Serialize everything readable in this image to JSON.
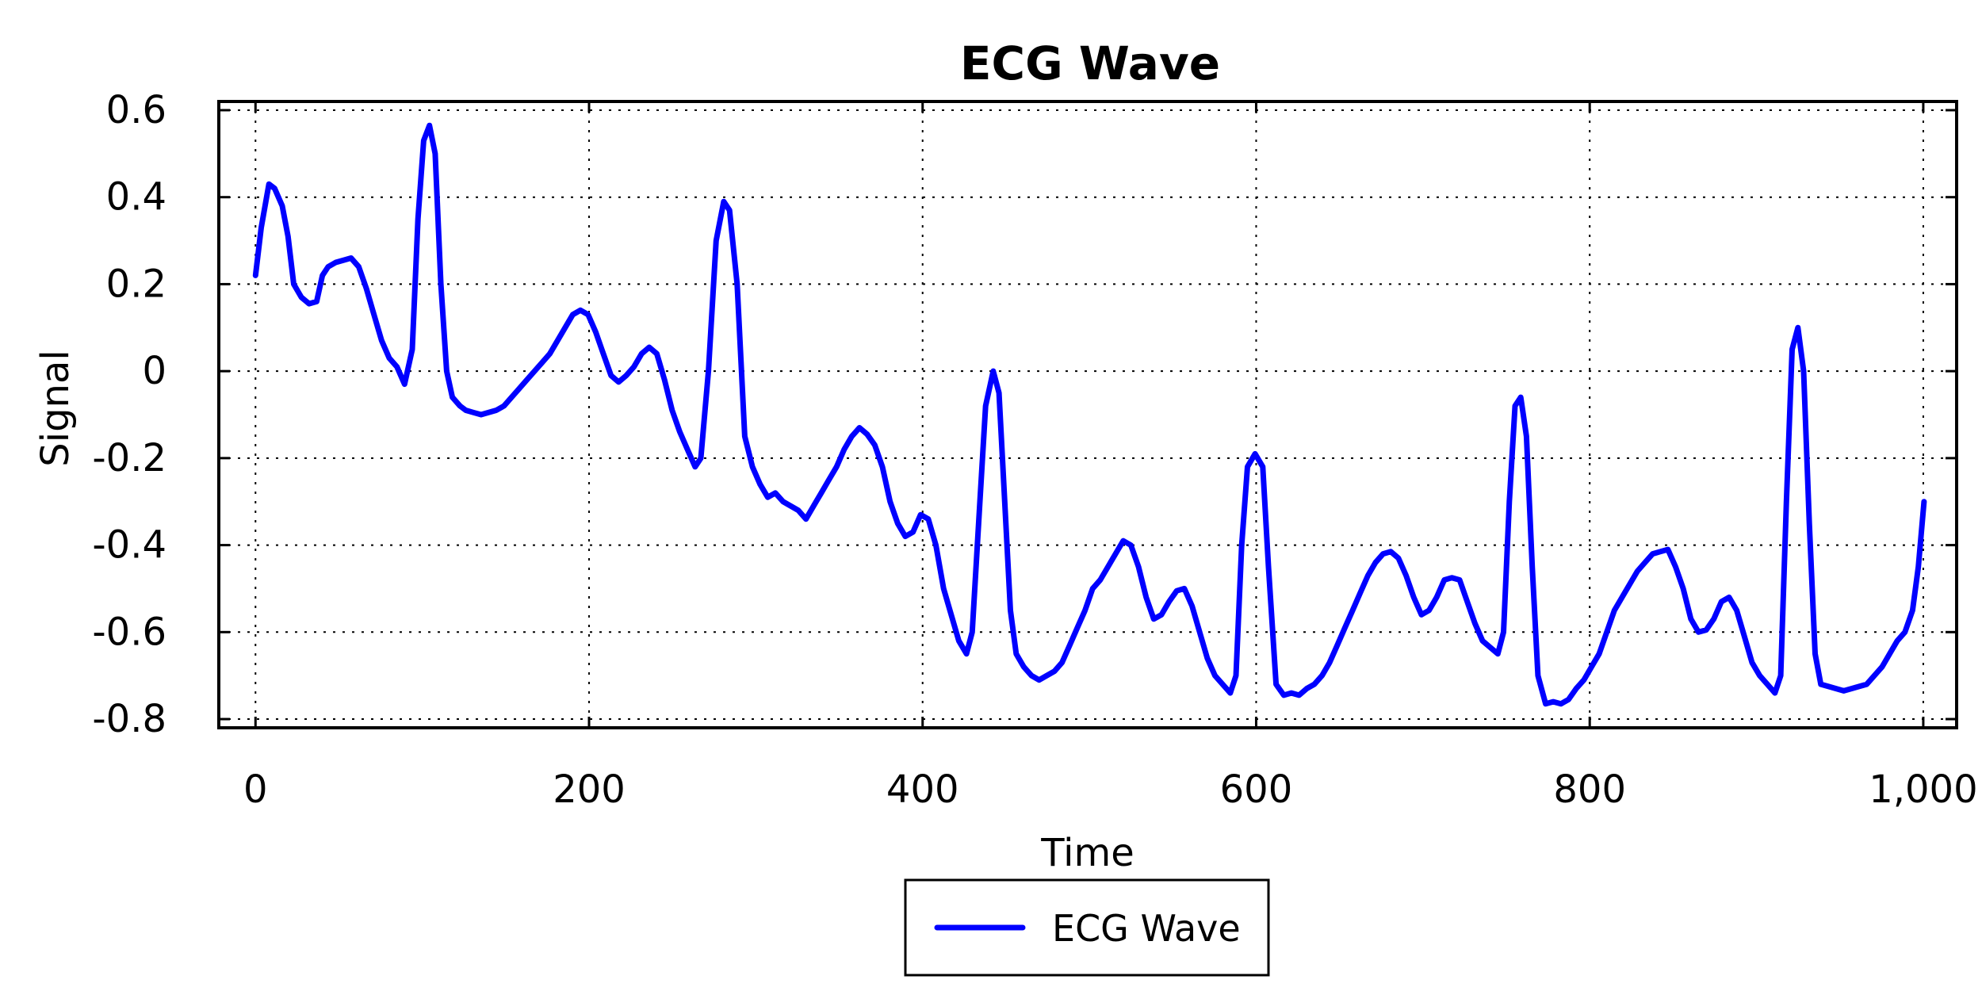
{
  "chart_data": {
    "type": "line",
    "title": "ECG Wave",
    "xlabel": "Time",
    "ylabel": "Signal",
    "xlim": [
      -22,
      1020
    ],
    "ylim": [
      -0.82,
      0.62
    ],
    "x_ticks": [
      0,
      200,
      400,
      600,
      800,
      1000
    ],
    "x_tick_labels": [
      "0",
      "200",
      "400",
      "600",
      "800",
      "1,000"
    ],
    "y_ticks": [
      0.6,
      0.4,
      0.2,
      0,
      -0.2,
      -0.4,
      -0.6,
      -0.8
    ],
    "y_tick_labels": [
      "0.6",
      "0.4",
      "0.2",
      "0",
      "-0.2",
      "-0.4",
      "-0.6",
      "-0.8"
    ],
    "grid": true,
    "grid_style": "dotted",
    "legend_position": "bottom-center",
    "series": [
      {
        "name": "ECG Wave",
        "color": "#0000ff",
        "points": [
          [
            0,
            0.22
          ],
          [
            3,
            0.33
          ],
          [
            7,
            0.43
          ],
          [
            10,
            0.42
          ],
          [
            14,
            0.38
          ],
          [
            17,
            0.31
          ],
          [
            20,
            0.2
          ],
          [
            24,
            0.17
          ],
          [
            28,
            0.155
          ],
          [
            32,
            0.16
          ],
          [
            35,
            0.22
          ],
          [
            38,
            0.24
          ],
          [
            42,
            0.25
          ],
          [
            46,
            0.255
          ],
          [
            50,
            0.26
          ],
          [
            54,
            0.24
          ],
          [
            58,
            0.19
          ],
          [
            62,
            0.13
          ],
          [
            66,
            0.07
          ],
          [
            70,
            0.03
          ],
          [
            74,
            0.01
          ],
          [
            78,
            -0.03
          ],
          [
            82,
            0.05
          ],
          [
            85,
            0.35
          ],
          [
            88,
            0.53
          ],
          [
            91,
            0.565
          ],
          [
            94,
            0.5
          ],
          [
            97,
            0.2
          ],
          [
            100,
            0.0
          ],
          [
            103,
            -0.06
          ],
          [
            107,
            -0.08
          ],
          [
            110,
            -0.09
          ],
          [
            114,
            -0.095
          ],
          [
            118,
            -0.1
          ],
          [
            122,
            -0.095
          ],
          [
            126,
            -0.09
          ],
          [
            130,
            -0.08
          ],
          [
            134,
            -0.06
          ],
          [
            138,
            -0.04
          ],
          [
            142,
            -0.02
          ],
          [
            146,
            0.0
          ],
          [
            150,
            0.02
          ],
          [
            154,
            0.04
          ],
          [
            158,
            0.07
          ],
          [
            162,
            0.1
          ],
          [
            166,
            0.13
          ],
          [
            170,
            0.14
          ],
          [
            174,
            0.13
          ],
          [
            178,
            0.09
          ],
          [
            182,
            0.04
          ],
          [
            186,
            -0.01
          ],
          [
            190,
            -0.025
          ],
          [
            194,
            -0.01
          ],
          [
            198,
            0.01
          ],
          [
            202,
            0.04
          ],
          [
            206,
            0.055
          ],
          [
            210,
            0.04
          ],
          [
            214,
            -0.02
          ],
          [
            218,
            -0.09
          ],
          [
            222,
            -0.14
          ],
          [
            226,
            -0.18
          ],
          [
            230,
            -0.22
          ],
          [
            233,
            -0.2
          ],
          [
            237,
            0.0
          ],
          [
            241,
            0.3
          ],
          [
            245,
            0.39
          ],
          [
            248,
            0.37
          ],
          [
            252,
            0.2
          ],
          [
            256,
            -0.15
          ],
          [
            260,
            -0.22
          ],
          [
            264,
            -0.26
          ],
          [
            268,
            -0.29
          ],
          [
            272,
            -0.28
          ],
          [
            276,
            -0.3
          ],
          [
            280,
            -0.31
          ],
          [
            284,
            -0.32
          ],
          [
            288,
            -0.34
          ],
          [
            292,
            -0.31
          ],
          [
            296,
            -0.28
          ],
          [
            300,
            -0.25
          ],
          [
            304,
            -0.22
          ],
          [
            308,
            -0.18
          ],
          [
            312,
            -0.15
          ],
          [
            316,
            -0.13
          ],
          [
            320,
            -0.145
          ],
          [
            324,
            -0.17
          ],
          [
            328,
            -0.22
          ],
          [
            332,
            -0.3
          ],
          [
            336,
            -0.35
          ],
          [
            340,
            -0.38
          ],
          [
            344,
            -0.37
          ],
          [
            348,
            -0.33
          ],
          [
            352,
            -0.34
          ],
          [
            356,
            -0.4
          ],
          [
            360,
            -0.5
          ],
          [
            364,
            -0.56
          ],
          [
            368,
            -0.62
          ],
          [
            372,
            -0.65
          ],
          [
            375,
            -0.6
          ],
          [
            379,
            -0.3
          ],
          [
            382,
            -0.08
          ],
          [
            386,
            0.0
          ],
          [
            389,
            -0.05
          ],
          [
            392,
            -0.3
          ],
          [
            395,
            -0.55
          ],
          [
            398,
            -0.65
          ],
          [
            402,
            -0.68
          ],
          [
            406,
            -0.7
          ],
          [
            410,
            -0.71
          ],
          [
            414,
            -0.7
          ],
          [
            418,
            -0.69
          ],
          [
            422,
            -0.67
          ],
          [
            426,
            -0.63
          ],
          [
            430,
            -0.59
          ],
          [
            434,
            -0.55
          ],
          [
            438,
            -0.5
          ],
          [
            442,
            -0.48
          ],
          [
            446,
            -0.45
          ],
          [
            450,
            -0.42
          ],
          [
            454,
            -0.39
          ],
          [
            458,
            -0.4
          ],
          [
            462,
            -0.45
          ],
          [
            466,
            -0.52
          ],
          [
            470,
            -0.57
          ],
          [
            474,
            -0.56
          ],
          [
            478,
            -0.53
          ],
          [
            482,
            -0.505
          ],
          [
            486,
            -0.5
          ],
          [
            490,
            -0.54
          ],
          [
            494,
            -0.6
          ],
          [
            498,
            -0.66
          ],
          [
            502,
            -0.7
          ],
          [
            506,
            -0.72
          ],
          [
            510,
            -0.74
          ],
          [
            513,
            -0.7
          ],
          [
            516,
            -0.4
          ],
          [
            519,
            -0.22
          ],
          [
            523,
            -0.19
          ],
          [
            527,
            -0.22
          ],
          [
            530,
            -0.45
          ],
          [
            534,
            -0.72
          ],
          [
            538,
            -0.745
          ],
          [
            542,
            -0.74
          ],
          [
            546,
            -0.745
          ],
          [
            550,
            -0.73
          ],
          [
            554,
            -0.72
          ],
          [
            558,
            -0.7
          ],
          [
            562,
            -0.67
          ],
          [
            566,
            -0.63
          ],
          [
            570,
            -0.59
          ],
          [
            574,
            -0.55
          ],
          [
            578,
            -0.51
          ],
          [
            582,
            -0.47
          ],
          [
            586,
            -0.44
          ],
          [
            590,
            -0.42
          ],
          [
            594,
            -0.415
          ],
          [
            598,
            -0.43
          ],
          [
            602,
            -0.47
          ],
          [
            606,
            -0.52
          ],
          [
            610,
            -0.56
          ],
          [
            614,
            -0.55
          ],
          [
            618,
            -0.52
          ],
          [
            622,
            -0.48
          ],
          [
            626,
            -0.475
          ],
          [
            630,
            -0.48
          ],
          [
            634,
            -0.53
          ],
          [
            638,
            -0.58
          ],
          [
            642,
            -0.62
          ],
          [
            646,
            -0.635
          ],
          [
            650,
            -0.65
          ],
          [
            653,
            -0.6
          ],
          [
            656,
            -0.3
          ],
          [
            659,
            -0.08
          ],
          [
            662,
            -0.06
          ],
          [
            665,
            -0.15
          ],
          [
            668,
            -0.45
          ],
          [
            671,
            -0.7
          ],
          [
            675,
            -0.765
          ],
          [
            679,
            -0.76
          ],
          [
            683,
            -0.765
          ],
          [
            687,
            -0.755
          ],
          [
            691,
            -0.73
          ],
          [
            695,
            -0.71
          ],
          [
            699,
            -0.68
          ],
          [
            703,
            -0.65
          ],
          [
            707,
            -0.6
          ],
          [
            711,
            -0.55
          ],
          [
            715,
            -0.52
          ],
          [
            719,
            -0.49
          ],
          [
            723,
            -0.46
          ],
          [
            727,
            -0.44
          ],
          [
            731,
            -0.42
          ],
          [
            735,
            -0.415
          ],
          [
            739,
            -0.41
          ],
          [
            743,
            -0.45
          ],
          [
            747,
            -0.5
          ],
          [
            751,
            -0.57
          ],
          [
            755,
            -0.6
          ],
          [
            759,
            -0.595
          ],
          [
            763,
            -0.57
          ],
          [
            767,
            -0.53
          ],
          [
            771,
            -0.52
          ],
          [
            775,
            -0.55
          ],
          [
            779,
            -0.61
          ],
          [
            783,
            -0.67
          ],
          [
            787,
            -0.7
          ],
          [
            791,
            -0.72
          ],
          [
            795,
            -0.74
          ],
          [
            798,
            -0.7
          ],
          [
            801,
            -0.3
          ],
          [
            804,
            0.05
          ],
          [
            807,
            0.1
          ],
          [
            810,
            0.0
          ],
          [
            813,
            -0.35
          ],
          [
            816,
            -0.65
          ],
          [
            819,
            -0.72
          ],
          [
            823,
            -0.725
          ],
          [
            827,
            -0.73
          ],
          [
            831,
            -0.735
          ],
          [
            835,
            -0.73
          ],
          [
            839,
            -0.725
          ],
          [
            843,
            -0.72
          ],
          [
            847,
            -0.7
          ],
          [
            851,
            -0.68
          ],
          [
            855,
            -0.65
          ],
          [
            859,
            -0.62
          ],
          [
            863,
            -0.6
          ],
          [
            867,
            -0.55
          ],
          [
            870,
            -0.45
          ],
          [
            873,
            -0.3
          ]
        ]
      }
    ],
    "x_scale_factor": 1.146
  }
}
